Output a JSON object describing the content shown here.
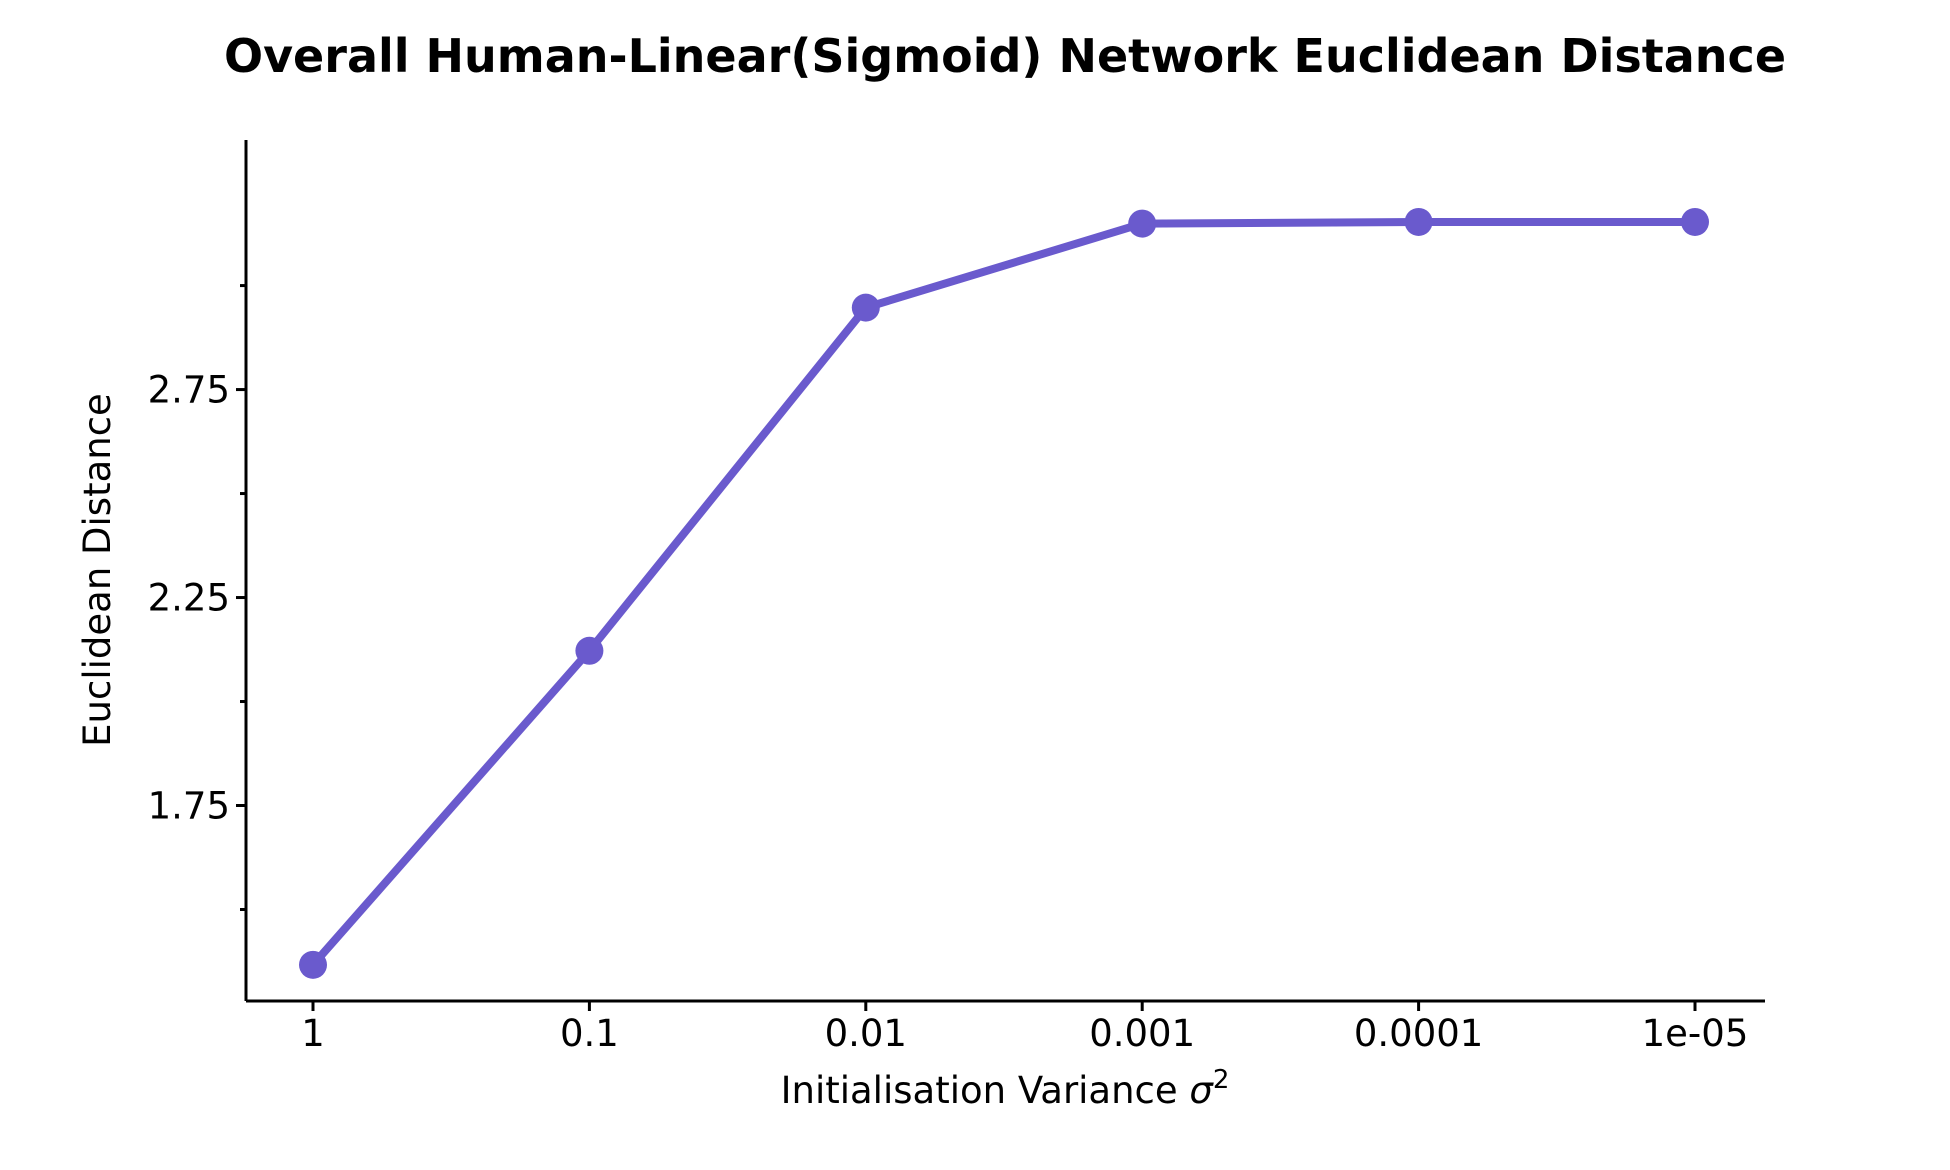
{
  "chart_data": {
    "type": "line",
    "title": "Overall Human-Linear(Sigmoid) Network Euclidean Distance",
    "xlabel_main": "Initialisation Variance ",
    "xlabel_symbol": "σ",
    "xlabel_superscript": "2",
    "ylabel": "Euclidean Distance",
    "categories": [
      "1",
      "0.1",
      "0.01",
      "0.001",
      "0.0001",
      "1e-05"
    ],
    "series": [
      {
        "values": [
          1.367,
          2.122,
          2.947,
          3.149,
          3.153,
          3.153
        ]
      }
    ],
    "ylim": [
      1.28,
      3.35
    ],
    "yticks": [
      1.75,
      2.25,
      2.75
    ],
    "ytick_labels": [
      "1.75",
      "2.25",
      "2.75"
    ],
    "y_minor_ticks": [
      1.5,
      2.0,
      2.5,
      3.0
    ],
    "line_color": "#6a5acd",
    "grid": false,
    "legend": "none"
  }
}
